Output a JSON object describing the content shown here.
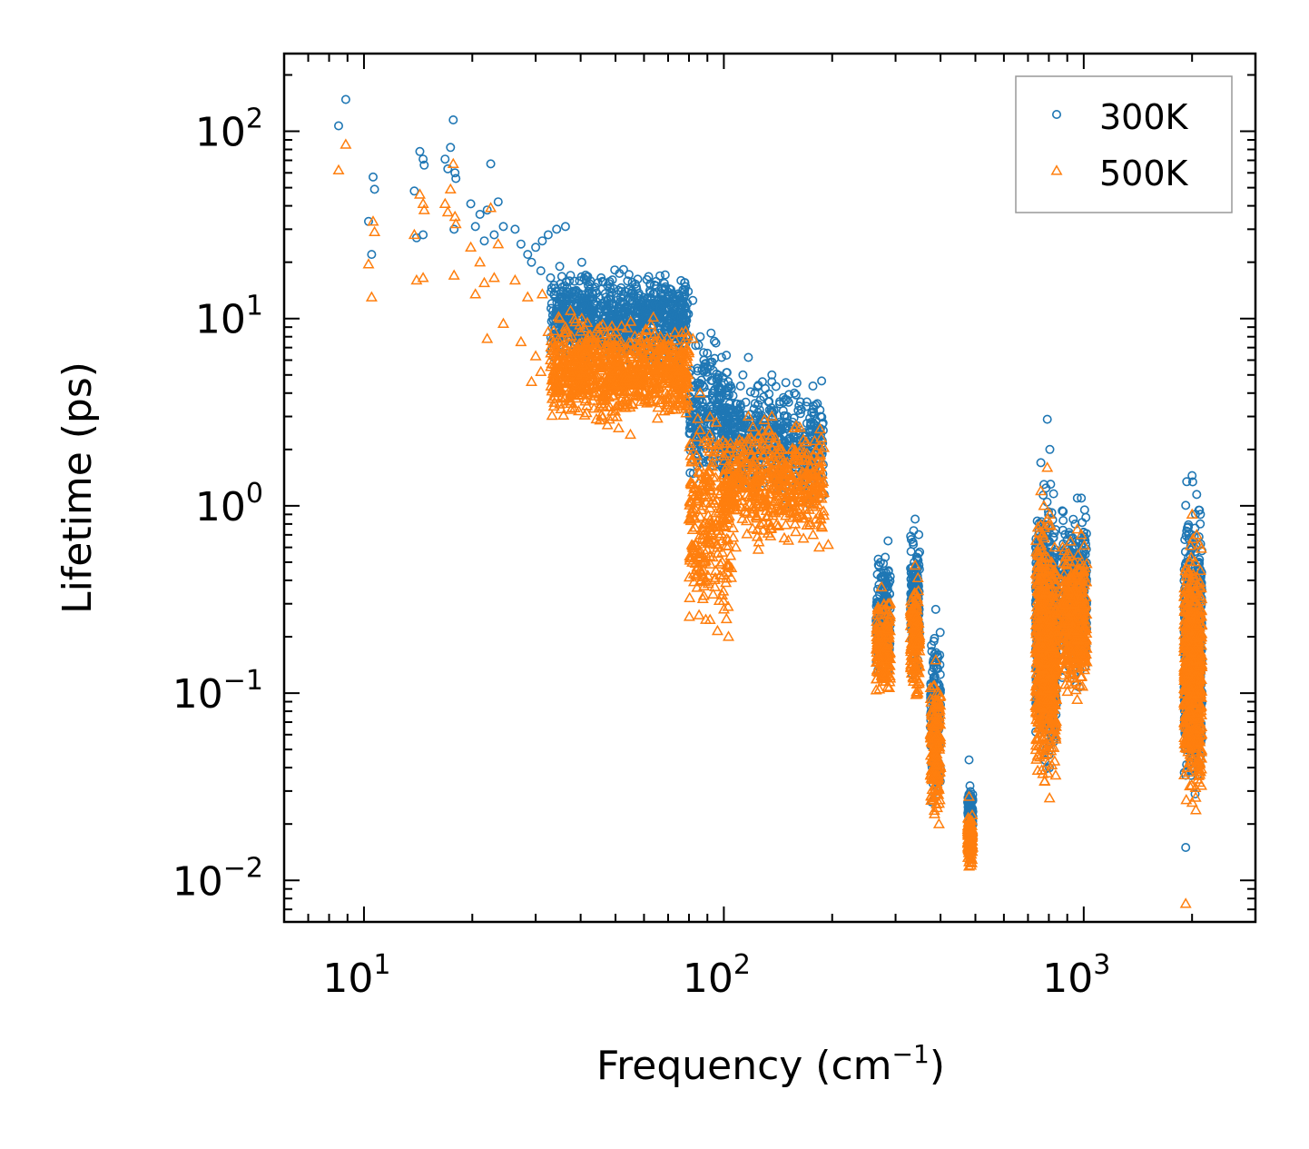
{
  "chart_data": {
    "type": "scatter",
    "xscale": "log",
    "yscale": "log",
    "xlabel": "Frequency (cm",
    "xlabel_sup": "−1",
    "xlabel_end": ")",
    "ylabel": "Lifetime (ps)",
    "xlim": [
      6.0,
      3000.0
    ],
    "ylim": [
      0.006,
      260
    ],
    "x_ticks": [
      {
        "value": 10,
        "base": "10",
        "exp": "1"
      },
      {
        "value": 100,
        "base": "10",
        "exp": "2"
      },
      {
        "value": 1000,
        "base": "10",
        "exp": "3"
      }
    ],
    "y_ticks": [
      {
        "value": 0.01,
        "base": "10",
        "exp": "−2"
      },
      {
        "value": 0.1,
        "base": "10",
        "exp": "−1"
      },
      {
        "value": 1,
        "base": "10",
        "exp": "0"
      },
      {
        "value": 10,
        "base": "10",
        "exp": "1"
      },
      {
        "value": 100,
        "base": "10",
        "exp": "2"
      }
    ],
    "legend_position": "top-right",
    "series": [
      {
        "name": "300K",
        "marker": "circle",
        "color": "#1f77b4",
        "points": [
          [
            8.5,
            107
          ],
          [
            8.9,
            148
          ],
          [
            10.3,
            33
          ],
          [
            10.5,
            22
          ],
          [
            10.6,
            57
          ],
          [
            10.7,
            49
          ],
          [
            13.8,
            48
          ],
          [
            14.0,
            27
          ],
          [
            14.3,
            78
          ],
          [
            14.6,
            71
          ],
          [
            14.7,
            66
          ],
          [
            14.6,
            28
          ],
          [
            16.8,
            71
          ],
          [
            17.1,
            63
          ],
          [
            17.4,
            82
          ],
          [
            17.7,
            115
          ],
          [
            17.9,
            60
          ],
          [
            18.0,
            56
          ],
          [
            17.8,
            30
          ],
          [
            19.8,
            41
          ],
          [
            20.4,
            31
          ],
          [
            21.0,
            36
          ],
          [
            21.6,
            26
          ],
          [
            22.5,
            67
          ],
          [
            22.0,
            38
          ],
          [
            23.0,
            28
          ],
          [
            23.6,
            42
          ],
          [
            24.4,
            31
          ],
          [
            26.3,
            30
          ],
          [
            27.3,
            25
          ],
          [
            28.5,
            22
          ],
          [
            30.0,
            24
          ],
          [
            31.3,
            26
          ],
          [
            32.5,
            28
          ],
          [
            34.3,
            30
          ],
          [
            36.3,
            31
          ],
          [
            29.2,
            20
          ],
          [
            31.0,
            18
          ],
          [
            33.0,
            16.5
          ],
          [
            35.0,
            19
          ],
          [
            37.5,
            17
          ],
          [
            40.3,
            20
          ],
          [
            42.0,
            15
          ],
          [
            44.0,
            14
          ],
          [
            47.0,
            13
          ],
          [
            51.0,
            11
          ],
          [
            55.0,
            9.4
          ],
          [
            60.0,
            11.5
          ],
          [
            64.0,
            13.5
          ],
          [
            68.0,
            12
          ],
          [
            72.0,
            13.6
          ],
          [
            77.0,
            12
          ],
          [
            82.0,
            12.5
          ],
          [
            86.0,
            8.0
          ],
          [
            88.0,
            6.0
          ],
          [
            93.0,
            4.0
          ],
          [
            96.0,
            3.0
          ],
          [
            99.0,
            1.6
          ],
          [
            103.0,
            2.0
          ],
          [
            108.0,
            3.5
          ],
          [
            113.0,
            5.0
          ],
          [
            117.0,
            6.2
          ],
          [
            122.0,
            4.0
          ],
          [
            128.0,
            4.6
          ],
          [
            136.0,
            5.0
          ],
          [
            143.0,
            3.6
          ],
          [
            150.0,
            3.0
          ],
          [
            157.0,
            4.0
          ],
          [
            163.0,
            2.2
          ],
          [
            170.0,
            1.8
          ],
          [
            177.0,
            1.4
          ],
          [
            184.0,
            1.1
          ],
          [
            190.0,
            1.15
          ],
          [
            286.0,
            0.65
          ],
          [
            290.0,
            0.42
          ],
          [
            340.0,
            0.85
          ],
          [
            345.0,
            0.52
          ],
          [
            388.0,
            0.28
          ],
          [
            392.0,
            0.16
          ],
          [
            396.0,
            0.08
          ],
          [
            480.0,
            0.044
          ],
          [
            483.0,
            0.032
          ],
          [
            486.0,
            0.025
          ],
          [
            760.0,
            1.7
          ],
          [
            775.0,
            1.3
          ],
          [
            792.0,
            2.9
          ],
          [
            805.0,
            2.0
          ],
          [
            815.0,
            0.92
          ],
          [
            830.0,
            0.35
          ],
          [
            960.0,
            1.1
          ],
          [
            985.0,
            1.1
          ],
          [
            1000.0,
            0.72
          ],
          [
            1010.0,
            0.55
          ],
          [
            1920.0,
            0.015
          ],
          [
            2000.0,
            1.45
          ],
          [
            2060.0,
            1.15
          ],
          [
            2110.0,
            0.9
          ]
        ],
        "clusters": [
          {
            "x": [
              33,
              80
            ],
            "y": [
              5,
              20
            ],
            "count": 900
          },
          {
            "x": [
              80,
              105
            ],
            "y": [
              1.0,
              10
            ],
            "count": 260
          },
          {
            "x": [
              100,
              190
            ],
            "y": [
              0.9,
              5.5
            ],
            "count": 500
          },
          {
            "x": [
              265,
              290
            ],
            "y": [
              0.1,
              0.7
            ],
            "count": 160
          },
          {
            "x": [
              330,
              350
            ],
            "y": [
              0.1,
              0.85
            ],
            "count": 160
          },
          {
            "x": [
              375,
              400
            ],
            "y": [
              0.02,
              0.28
            ],
            "count": 170
          },
          {
            "x": [
              476,
              492
            ],
            "y": [
              0.015,
              0.035
            ],
            "count": 110
          },
          {
            "x": [
              735,
              840
            ],
            "y": [
              0.03,
              1.7
            ],
            "count": 650
          },
          {
            "x": [
              870,
              1020
            ],
            "y": [
              0.1,
              1.1
            ],
            "count": 380
          },
          {
            "x": [
              1900,
              2130
            ],
            "y": [
              0.02,
              1.45
            ],
            "count": 650
          }
        ]
      },
      {
        "name": "500K",
        "marker": "triangle",
        "color": "#ff7f0e",
        "points": [
          [
            8.5,
            62
          ],
          [
            8.9,
            85
          ],
          [
            10.3,
            19.5
          ],
          [
            10.5,
            13
          ],
          [
            10.6,
            33
          ],
          [
            10.7,
            29
          ],
          [
            13.8,
            28
          ],
          [
            14.0,
            16
          ],
          [
            14.3,
            46
          ],
          [
            14.6,
            41
          ],
          [
            14.7,
            38
          ],
          [
            14.6,
            16.5
          ],
          [
            16.8,
            41
          ],
          [
            17.1,
            37
          ],
          [
            17.4,
            49
          ],
          [
            17.7,
            67
          ],
          [
            17.9,
            35
          ],
          [
            18.0,
            32
          ],
          [
            17.8,
            17
          ],
          [
            19.8,
            24
          ],
          [
            20.4,
            13.5
          ],
          [
            21.0,
            20
          ],
          [
            21.6,
            15.5
          ],
          [
            22.5,
            39
          ],
          [
            22.0,
            7.8
          ],
          [
            23.0,
            16.5
          ],
          [
            23.6,
            25
          ],
          [
            24.4,
            9.4
          ],
          [
            26.3,
            16
          ],
          [
            27.3,
            7.5
          ],
          [
            28.5,
            13
          ],
          [
            30.0,
            6.3
          ],
          [
            31.3,
            13.5
          ],
          [
            32.5,
            8.5
          ],
          [
            34.3,
            7.5
          ],
          [
            36.3,
            9.0
          ],
          [
            29.2,
            4.6
          ],
          [
            31.0,
            5.2
          ],
          [
            33.0,
            6.0
          ],
          [
            35.0,
            10
          ],
          [
            37.5,
            11
          ],
          [
            40.3,
            10
          ],
          [
            42.0,
            7.5
          ],
          [
            44.0,
            6.0
          ],
          [
            47.0,
            4.4
          ],
          [
            51.0,
            2.6
          ],
          [
            55.0,
            2.4
          ],
          [
            60.0,
            4.5
          ],
          [
            64.0,
            5.5
          ],
          [
            68.0,
            6.8
          ],
          [
            72.0,
            7.0
          ],
          [
            77.0,
            6.5
          ],
          [
            82.0,
            7.8
          ],
          [
            86.0,
            4.0
          ],
          [
            88.0,
            2.2
          ],
          [
            93.0,
            1.7
          ],
          [
            96.0,
            1.2
          ],
          [
            99.0,
            0.5
          ],
          [
            103.0,
            0.2
          ],
          [
            108.0,
            0.6
          ],
          [
            113.0,
            1.8
          ],
          [
            117.0,
            3.0
          ],
          [
            122.0,
            2.2
          ],
          [
            128.0,
            2.5
          ],
          [
            136.0,
            3.0
          ],
          [
            143.0,
            2.0
          ],
          [
            150.0,
            1.6
          ],
          [
            157.0,
            2.6
          ],
          [
            163.0,
            1.1
          ],
          [
            170.0,
            0.9
          ],
          [
            177.0,
            0.7
          ],
          [
            184.0,
            0.6
          ],
          [
            195.0,
            0.62
          ],
          [
            286.0,
            0.3
          ],
          [
            290.0,
            0.12
          ],
          [
            340.0,
            0.48
          ],
          [
            345.0,
            0.32
          ],
          [
            388.0,
            0.15
          ],
          [
            392.0,
            0.06
          ],
          [
            396.0,
            0.02
          ],
          [
            480.0,
            0.028
          ],
          [
            483.0,
            0.016
          ],
          [
            486.0,
            0.012
          ],
          [
            760.0,
            1.2
          ],
          [
            775.0,
            1.0
          ],
          [
            792.0,
            1.6
          ],
          [
            805.0,
            0.9
          ],
          [
            815.0,
            0.5
          ],
          [
            830.0,
            0.2
          ],
          [
            960.0,
            0.75
          ],
          [
            985.0,
            0.7
          ],
          [
            1000.0,
            0.45
          ],
          [
            1010.0,
            0.3
          ],
          [
            1920.0,
            0.0075
          ],
          [
            2000.0,
            0.9
          ],
          [
            2060.0,
            0.7
          ],
          [
            2110.0,
            0.45
          ]
        ],
        "clusters": [
          {
            "x": [
              33,
              80
            ],
            "y": [
              2.5,
              11
            ],
            "count": 900
          },
          {
            "x": [
              80,
              105
            ],
            "y": [
              0.15,
              4.5
            ],
            "count": 280
          },
          {
            "x": [
              100,
              190
            ],
            "y": [
              0.55,
              3.2
            ],
            "count": 500
          },
          {
            "x": [
              265,
              290
            ],
            "y": [
              0.08,
              0.4
            ],
            "count": 160
          },
          {
            "x": [
              330,
              350
            ],
            "y": [
              0.08,
              0.48
            ],
            "count": 160
          },
          {
            "x": [
              375,
              400
            ],
            "y": [
              0.018,
              0.15
            ],
            "count": 170
          },
          {
            "x": [
              476,
              492
            ],
            "y": [
              0.011,
              0.025
            ],
            "count": 110
          },
          {
            "x": [
              735,
              840
            ],
            "y": [
              0.022,
              1.2
            ],
            "count": 650
          },
          {
            "x": [
              870,
              1020
            ],
            "y": [
              0.08,
              0.75
            ],
            "count": 380
          },
          {
            "x": [
              1900,
              2130
            ],
            "y": [
              0.018,
              0.9
            ],
            "count": 650
          }
        ]
      }
    ]
  }
}
